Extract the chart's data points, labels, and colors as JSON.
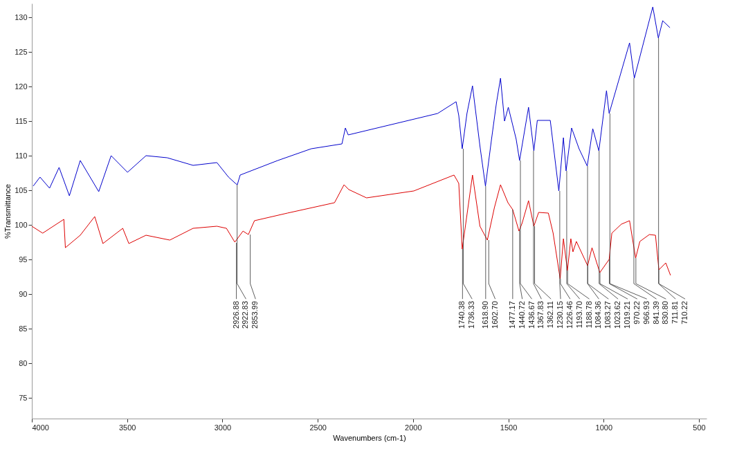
{
  "chart_data": {
    "type": "line",
    "xlabel": "Wavenumbers (cm-1)",
    "ylabel": "%Transmittance",
    "xlim": [
      4000,
      460
    ],
    "xticks": [
      4000,
      3500,
      3000,
      2500,
      2000,
      1500,
      1000,
      500
    ],
    "ylim": [
      72,
      132
    ],
    "yticks": [
      75,
      80,
      85,
      90,
      95,
      100,
      105,
      110,
      115,
      120,
      125,
      130
    ],
    "grid": false,
    "legend": false,
    "marker": "none",
    "line_style": "solid",
    "series": [
      {
        "color": "#0000cc",
        "x": [
          3993,
          3957,
          3907,
          3857,
          3803,
          3746,
          3649,
          3584,
          3498,
          3401,
          3290,
          3154,
          3029,
          2968,
          2932,
          2922,
          2907,
          2710,
          2534,
          2373,
          2355,
          2340,
          1871,
          1774,
          1760,
          1742,
          1717,
          1688,
          1649,
          1620,
          1588,
          1563,
          1541,
          1520,
          1500,
          1459,
          1441,
          1394,
          1366,
          1348,
          1280,
          1235,
          1211,
          1197,
          1168,
          1129,
          1086,
          1057,
          1025,
          985,
          971,
          864,
          839,
          742,
          713,
          690,
          652
        ],
        "values": [
          105.6,
          106.9,
          105.3,
          108.3,
          104.2,
          109.3,
          104.8,
          110,
          107.6,
          110,
          109.7,
          108.6,
          109,
          106.9,
          106,
          105.8,
          107.2,
          109.3,
          111,
          111.7,
          114,
          113,
          116.1,
          117.8,
          115.8,
          111,
          116.1,
          120.1,
          111.4,
          105.6,
          112.4,
          117.5,
          121.2,
          115,
          117,
          112.4,
          109.3,
          117,
          110.7,
          115.1,
          115.1,
          104.9,
          112.6,
          107.8,
          114,
          111,
          108.5,
          113.9,
          110.7,
          119.4,
          116.1,
          126.3,
          121.2,
          131.5,
          127,
          129.5,
          128.5
        ]
      },
      {
        "color": "#dd0000",
        "x": [
          4000,
          3943,
          3832,
          3824,
          3746,
          3670,
          3627,
          3523,
          3491,
          3401,
          3276,
          3154,
          3029,
          2979,
          2935,
          2892,
          2864,
          2832,
          2659,
          2412,
          2362,
          2337,
          2244,
          1996,
          1785,
          1760,
          1742,
          1688,
          1649,
          1610,
          1573,
          1541,
          1502,
          1477,
          1444,
          1427,
          1394,
          1366,
          1341,
          1290,
          1265,
          1228,
          1211,
          1190,
          1172,
          1161,
          1143,
          1084,
          1061,
          1020,
          971,
          957,
          907,
          864,
          832,
          810,
          760,
          728,
          710,
          674,
          649
        ],
        "values": [
          99.8,
          98.8,
          100.8,
          96.7,
          98.5,
          101.2,
          97.3,
          99.5,
          97.3,
          98.5,
          97.8,
          99.5,
          99.8,
          99.5,
          97.5,
          99.1,
          98.6,
          100.6,
          101.7,
          103.2,
          105.8,
          105.1,
          103.9,
          104.9,
          107.2,
          106,
          96.5,
          107.2,
          99.8,
          97.8,
          102.5,
          105.8,
          103.2,
          102.2,
          99.1,
          100.3,
          103.5,
          99.8,
          101.8,
          101.7,
          98.8,
          92.2,
          98,
          93.4,
          98,
          96.1,
          97.6,
          94.1,
          96.7,
          93.1,
          95,
          98.8,
          100.1,
          100.6,
          95.2,
          97.6,
          98.6,
          98.5,
          93.5,
          94.5,
          92.7
        ]
      }
    ],
    "annotations": [
      {
        "text": "2922.83",
        "x": 2922.83,
        "y": 105.8
      },
      {
        "text": "2926.88",
        "x": 2926.88,
        "y": 97.4
      },
      {
        "text": "2853.99",
        "x": 2853.99,
        "y": 98.6
      },
      {
        "text": "1740.38",
        "x": 1740.38,
        "y": 96.5
      },
      {
        "text": "1736.33",
        "x": 1736.33,
        "y": 111
      },
      {
        "text": "1618.90",
        "x": 1618.9,
        "y": 105.6
      },
      {
        "text": "1602.70",
        "x": 1602.7,
        "y": 97.8
      },
      {
        "text": "1477.17",
        "x": 1477.17,
        "y": 102.2
      },
      {
        "text": "1440.72",
        "x": 1440.72,
        "y": 99.2
      },
      {
        "text": "1436.67",
        "x": 1436.67,
        "y": 109.3
      },
      {
        "text": "1367.83",
        "x": 1367.83,
        "y": 110.7
      },
      {
        "text": "1362.11",
        "x": 1362.11,
        "y": 99.8
      },
      {
        "text": "1230.15",
        "x": 1230.15,
        "y": 104.9
      },
      {
        "text": "1226.46",
        "x": 1226.46,
        "y": 92.2
      },
      {
        "text": "1193.70",
        "x": 1193.7,
        "y": 107.8
      },
      {
        "text": "1188.78",
        "x": 1188.78,
        "y": 93.4
      },
      {
        "text": "1084.36",
        "x": 1084.36,
        "y": 108.5
      },
      {
        "text": "1083.27",
        "x": 1083.27,
        "y": 94.1
      },
      {
        "text": "1023.62",
        "x": 1023.62,
        "y": 110.7
      },
      {
        "text": "1019.21",
        "x": 1019.21,
        "y": 93.1
      },
      {
        "text": "970.22",
        "x": 970.22,
        "y": 95
      },
      {
        "text": "966.93",
        "x": 966.93,
        "y": 116.1
      },
      {
        "text": "841.39",
        "x": 841.39,
        "y": 121.2
      },
      {
        "text": "830.80",
        "x": 830.8,
        "y": 95.2
      },
      {
        "text": "711.81",
        "x": 711.81,
        "y": 127
      },
      {
        "text": "710.22",
        "x": 710.22,
        "y": 93.5
      }
    ]
  }
}
